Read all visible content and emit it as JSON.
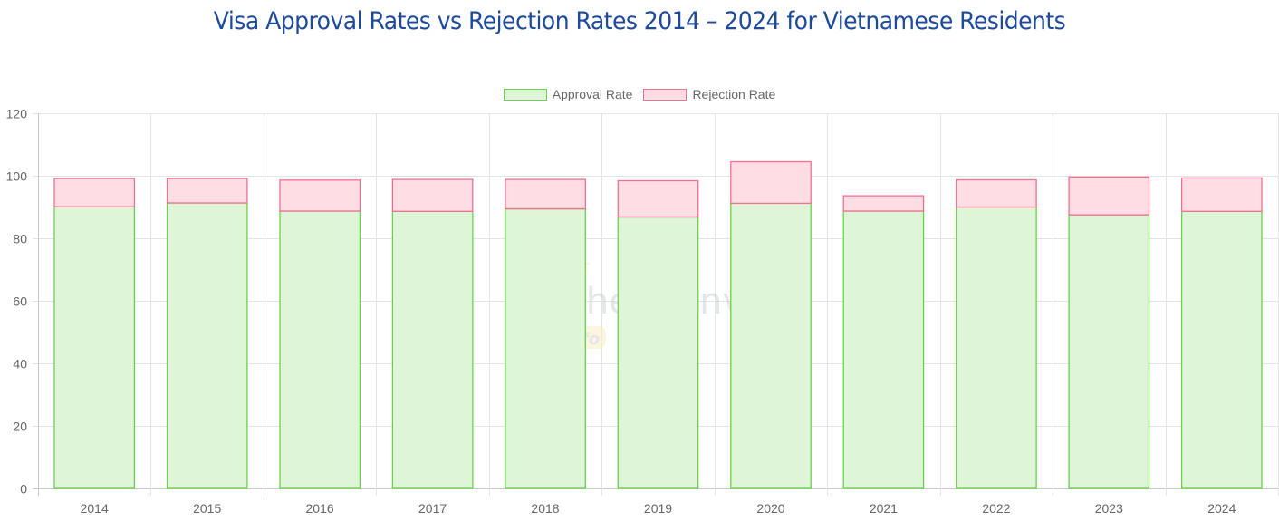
{
  "chart_data": {
    "type": "bar",
    "stacked": true,
    "title": "Visa Approval Rates vs Rejection Rates 2014 – 2024 for Vietnamese Residents",
    "xlabel": "",
    "ylabel": "",
    "ylim": [
      0,
      120
    ],
    "yticks": [
      "0",
      "20",
      "40",
      "60",
      "80",
      "100",
      "120"
    ],
    "grid": true,
    "legend_position": "top",
    "categories": [
      "2014",
      "2015",
      "2016",
      "2017",
      "2018",
      "2019",
      "2020",
      "2021",
      "2022",
      "2023",
      "2024"
    ],
    "series": [
      {
        "name": "Approval Rate",
        "fill": "#dff5d8",
        "stroke": "#6ad14a",
        "values": [
          90.1,
          91.3,
          88.7,
          88.6,
          89.4,
          86.8,
          91.2,
          88.7,
          90.0,
          87.5,
          88.6
        ]
      },
      {
        "name": "Rejection Rate",
        "fill": "#ffdde4",
        "stroke": "#f07090",
        "values": [
          9.0,
          7.8,
          9.9,
          10.2,
          9.4,
          11.6,
          13.3,
          4.9,
          8.7,
          12.1,
          10.7
        ]
      }
    ]
  },
  "watermark": {
    "text": "schengenvisa",
    "badge": "info"
  }
}
